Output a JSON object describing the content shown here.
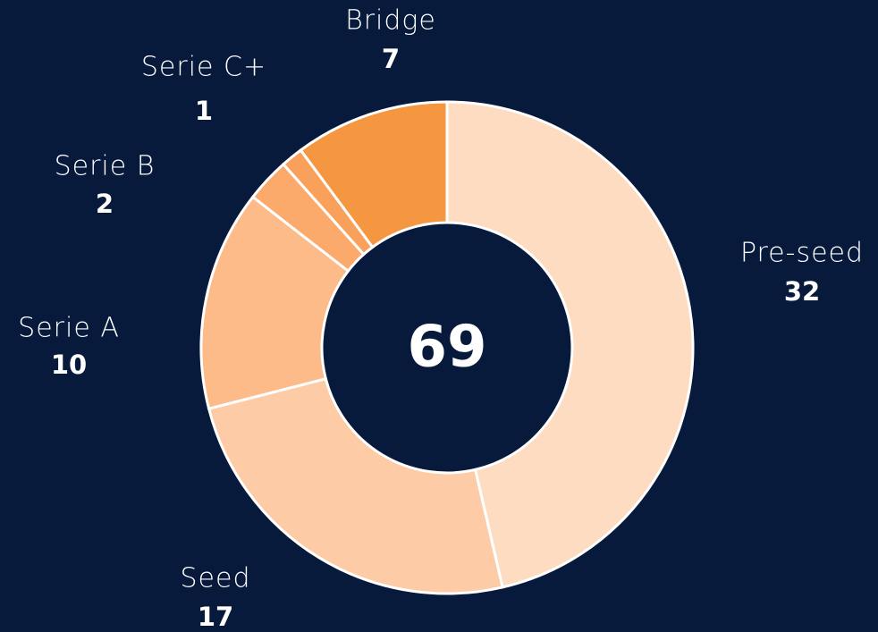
{
  "chart_data": {
    "type": "donut",
    "categories": [
      "Pre-seed",
      "Seed",
      "Serie A",
      "Serie B",
      "Serie C+",
      "Bridge"
    ],
    "values": [
      32,
      17,
      10,
      2,
      1,
      7
    ],
    "colors": [
      "#fddcc2",
      "#fdcca6",
      "#fcbb89",
      "#fbaa6c",
      "#f9a15a",
      "#f59640"
    ],
    "total": 69
  }
}
